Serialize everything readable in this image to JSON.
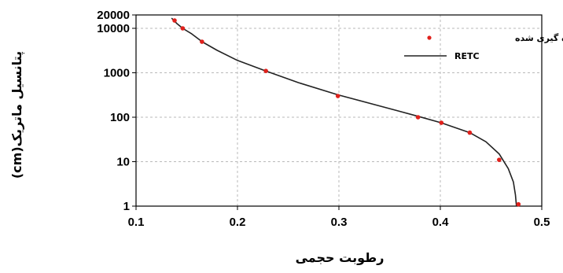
{
  "chart_data": {
    "type": "scatter",
    "title": "",
    "xlabel": "رطوبت حجمی",
    "ylabel": "پتانسیل ماتریک(cm)",
    "xlim": [
      0.1,
      0.5
    ],
    "ylim": [
      1,
      20000
    ],
    "yscale": "log",
    "grid": true,
    "legend_position": "top-right",
    "x_ticks": [
      {
        "value": 0.1,
        "label": "0.1"
      },
      {
        "value": 0.2,
        "label": "0.2"
      },
      {
        "value": 0.3,
        "label": "0.3"
      },
      {
        "value": 0.4,
        "label": "0.4"
      },
      {
        "value": 0.5,
        "label": "0.5"
      }
    ],
    "y_ticks": [
      {
        "value": 1,
        "label": "1"
      },
      {
        "value": 10,
        "label": "10"
      },
      {
        "value": 100,
        "label": "100"
      },
      {
        "value": 1000,
        "label": "1000"
      },
      {
        "value": 10000,
        "label": "10000"
      },
      {
        "value": 20000,
        "label": "20000"
      }
    ],
    "series": [
      {
        "name": "اندازه گیری شده",
        "kind": "scatter",
        "color": "#e0211c",
        "points": [
          {
            "x": 0.138,
            "y": 15000
          },
          {
            "x": 0.146,
            "y": 10000
          },
          {
            "x": 0.165,
            "y": 5000
          },
          {
            "x": 0.228,
            "y": 1100
          },
          {
            "x": 0.299,
            "y": 300
          },
          {
            "x": 0.378,
            "y": 100
          },
          {
            "x": 0.401,
            "y": 75
          },
          {
            "x": 0.429,
            "y": 45
          },
          {
            "x": 0.458,
            "y": 11
          },
          {
            "x": 0.477,
            "y": 1.1
          }
        ]
      },
      {
        "name": "RETC",
        "kind": "line",
        "color": "#222222",
        "points": [
          {
            "x": 0.135,
            "y": 17000
          },
          {
            "x": 0.14,
            "y": 13000
          },
          {
            "x": 0.146,
            "y": 10000
          },
          {
            "x": 0.155,
            "y": 7500
          },
          {
            "x": 0.165,
            "y": 5000
          },
          {
            "x": 0.18,
            "y": 3200
          },
          {
            "x": 0.2,
            "y": 1900
          },
          {
            "x": 0.228,
            "y": 1100
          },
          {
            "x": 0.26,
            "y": 600
          },
          {
            "x": 0.299,
            "y": 320
          },
          {
            "x": 0.34,
            "y": 180
          },
          {
            "x": 0.378,
            "y": 105
          },
          {
            "x": 0.401,
            "y": 75
          },
          {
            "x": 0.429,
            "y": 45
          },
          {
            "x": 0.445,
            "y": 28
          },
          {
            "x": 0.458,
            "y": 15
          },
          {
            "x": 0.467,
            "y": 7
          },
          {
            "x": 0.472,
            "y": 3.5
          },
          {
            "x": 0.474,
            "y": 1.8
          },
          {
            "x": 0.475,
            "y": 1
          }
        ]
      }
    ]
  }
}
